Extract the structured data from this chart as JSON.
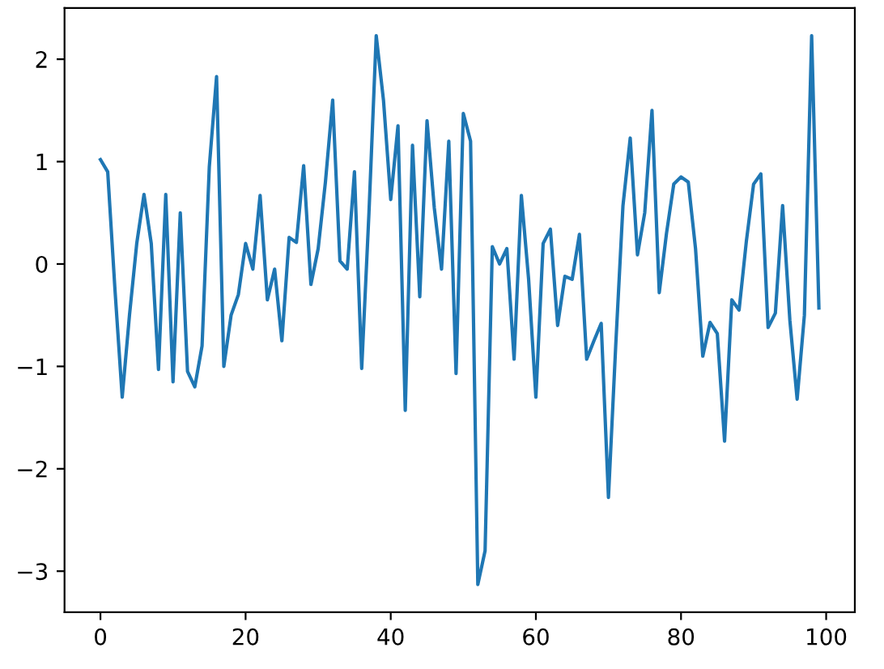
{
  "chart_data": {
    "type": "line",
    "x": [
      0,
      1,
      2,
      3,
      4,
      5,
      6,
      7,
      8,
      9,
      10,
      11,
      12,
      13,
      14,
      15,
      16,
      17,
      18,
      19,
      20,
      21,
      22,
      23,
      24,
      25,
      26,
      27,
      28,
      29,
      30,
      31,
      32,
      33,
      34,
      35,
      36,
      37,
      38,
      39,
      40,
      41,
      42,
      43,
      44,
      45,
      46,
      47,
      48,
      49,
      50,
      51,
      52,
      53,
      54,
      55,
      56,
      57,
      58,
      59,
      60,
      61,
      62,
      63,
      64,
      65,
      66,
      67,
      68,
      69,
      70,
      71,
      72,
      73,
      74,
      75,
      76,
      77,
      78,
      79,
      80,
      81,
      82,
      83,
      84,
      85,
      86,
      87,
      88,
      89,
      90,
      91,
      92,
      93,
      94,
      95,
      96,
      97,
      98,
      99
    ],
    "series": [
      {
        "color": "#1f77b4",
        "values": [
          1.02,
          0.9,
          -0.25,
          -1.3,
          -0.5,
          0.2,
          0.68,
          0.2,
          -1.03,
          0.68,
          -1.15,
          0.5,
          -1.05,
          -1.2,
          -0.8,
          0.95,
          1.83,
          -1.0,
          -0.5,
          -0.3,
          0.2,
          -0.05,
          0.67,
          -0.35,
          -0.05,
          -0.75,
          0.26,
          0.21,
          0.96,
          -0.2,
          0.15,
          0.8,
          1.6,
          0.03,
          -0.05,
          0.9,
          -1.02,
          0.5,
          2.23,
          1.6,
          0.63,
          1.35,
          -1.43,
          1.16,
          -0.32,
          1.4,
          0.55,
          -0.05,
          1.2,
          -1.07,
          1.47,
          1.2,
          -3.13,
          -2.8,
          0.17,
          0.0,
          0.15,
          -0.93,
          0.67,
          -0.15,
          -1.3,
          0.2,
          0.34,
          -0.6,
          -0.12,
          -0.15,
          0.29,
          -0.93,
          -0.75,
          -0.58,
          -2.28,
          -0.8,
          0.57,
          1.23,
          0.09,
          0.5,
          1.5,
          -0.28,
          0.3,
          0.78,
          0.85,
          0.8,
          0.15,
          -0.9,
          -0.57,
          -0.68,
          -1.73,
          -0.35,
          -0.45,
          0.22,
          0.78,
          0.88,
          -0.62,
          -0.48,
          0.57,
          -0.55,
          -1.32,
          -0.5,
          2.23,
          -0.43
        ]
      }
    ],
    "xlim": [
      -4.95,
      103.95
    ],
    "ylim": [
      -3.4,
      2.5
    ],
    "xticks": [
      0,
      20,
      40,
      60,
      80,
      100
    ],
    "yticks": [
      {
        "value": -3,
        "label": "−3"
      },
      {
        "value": -2,
        "label": "−2"
      },
      {
        "value": -1,
        "label": "−1"
      },
      0,
      1,
      2
    ],
    "grid": false,
    "marker": "none",
    "line_style": "solid"
  }
}
